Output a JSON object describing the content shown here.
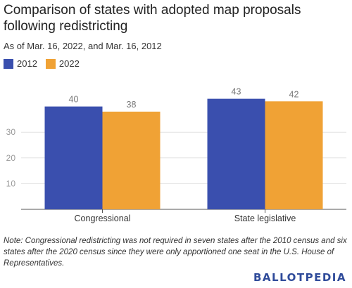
{
  "chart_data": {
    "type": "bar",
    "title": "Comparison of states with adopted map proposals following redistricting",
    "subtitle": "As of Mar. 16, 2022, and Mar. 16, 2012",
    "categories": [
      "Congressional",
      "State legislative"
    ],
    "series": [
      {
        "name": "2012",
        "values": [
          40,
          43
        ],
        "color": "#3a4fae"
      },
      {
        "name": "2022",
        "values": [
          38,
          42
        ],
        "color": "#f0a235"
      }
    ],
    "y_ticks": [
      10,
      20,
      30
    ],
    "ylim": [
      0,
      50
    ],
    "grid": true,
    "legend": "top-left",
    "xlabel": "",
    "ylabel": ""
  },
  "note": "Note: Congressional redistricting was not required in seven states after the 2010 census and six states after the 2020 census since they were only apportioned one seat in the U.S. House of Representatives.",
  "brand": "BALLOTPEDIA"
}
